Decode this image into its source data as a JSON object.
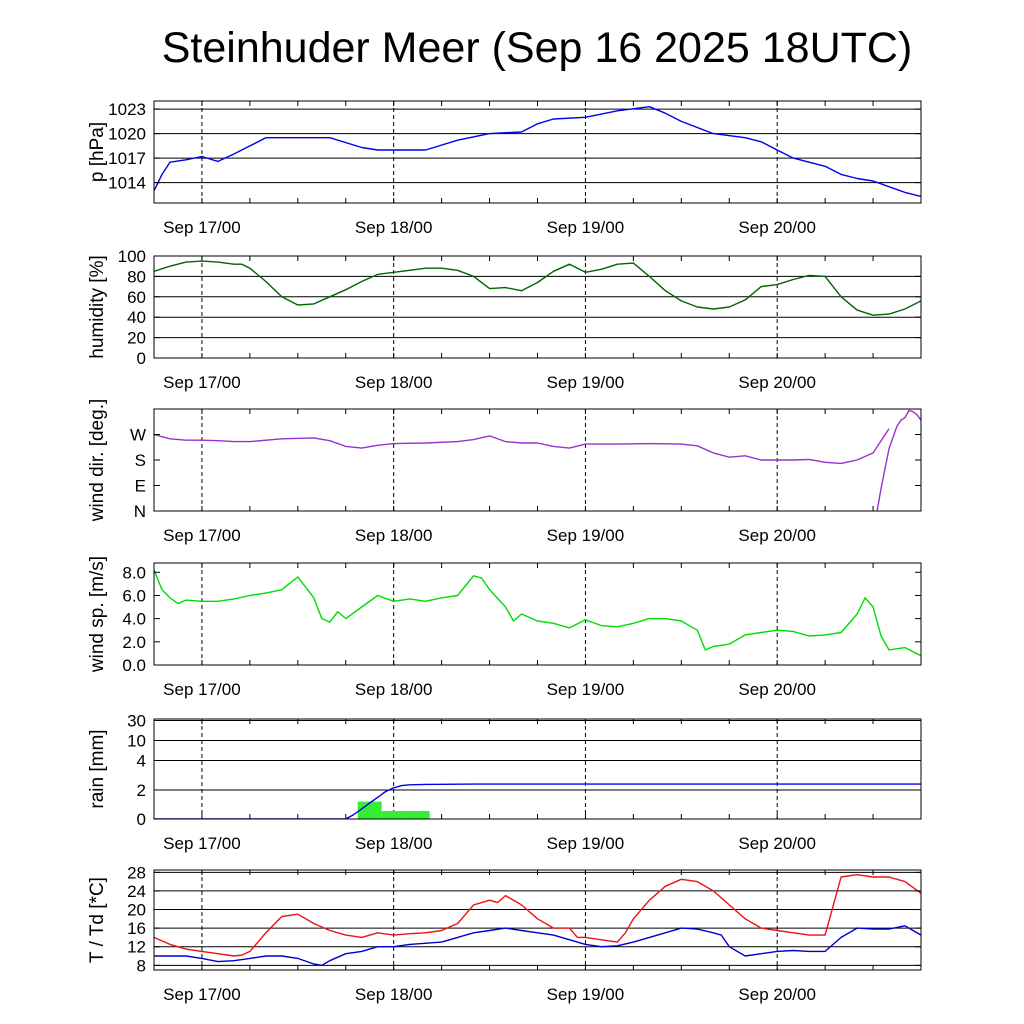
{
  "title": "Steinhuder Meer (Sep 16 2025 18UTC)",
  "x_tick_labels": [
    "Sep 17/00",
    "Sep 18/00",
    "Sep 19/00",
    "Sep 20/00"
  ],
  "colors": {
    "pressure": "#0000ee",
    "humidity": "#006400",
    "wind_dir": "#9932cc",
    "wind_speed": "#00dd00",
    "rain_bar": "#33ee33",
    "rain_line": "#0000ee",
    "temperature": "#ee1111",
    "dewpoint": "#0000cc"
  },
  "chart_data": [
    {
      "type": "line",
      "ylabel": "p [hPa]",
      "xlim": [
        0,
        96
      ],
      "x_ticks": [
        6,
        30,
        54,
        78
      ],
      "ylim": [
        1011.5,
        1024
      ],
      "y_ticks": [
        1014,
        1017,
        1020,
        1023
      ],
      "y_tick_labels": [
        "1014",
        "1017",
        "1020",
        "1023"
      ],
      "grid": true,
      "series": [
        {
          "color_key": "pressure",
          "x": [
            0,
            1,
            2,
            4,
            6,
            8,
            10,
            12,
            14,
            18,
            22,
            26,
            28,
            30,
            34,
            38,
            42,
            46,
            48,
            50,
            54,
            58,
            62,
            64,
            66,
            70,
            74,
            76,
            78,
            80,
            84,
            86,
            88,
            90,
            92,
            94,
            96
          ],
          "y": [
            1013,
            1015,
            1016.5,
            1016.8,
            1017.2,
            1016.6,
            1017.5,
            1018.5,
            1019.5,
            1019.5,
            1019.5,
            1018.3,
            1018,
            1018,
            1018,
            1019.2,
            1020,
            1020.2,
            1021.2,
            1021.8,
            1022,
            1022.8,
            1023.3,
            1022.5,
            1021.5,
            1020,
            1019.5,
            1019,
            1018,
            1017,
            1016,
            1015,
            1014.5,
            1014.2,
            1013.5,
            1012.8,
            1012.3
          ]
        }
      ]
    },
    {
      "type": "line",
      "ylabel": "humidity [%]",
      "xlim": [
        0,
        96
      ],
      "x_ticks": [
        6,
        30,
        54,
        78
      ],
      "ylim": [
        0,
        100
      ],
      "y_ticks": [
        0,
        20,
        40,
        60,
        80,
        100
      ],
      "y_tick_labels": [
        "0",
        "20",
        "40",
        "60",
        "80",
        "100"
      ],
      "grid": true,
      "series": [
        {
          "color_key": "humidity",
          "x": [
            0,
            2,
            4,
            6,
            8,
            10,
            11,
            12,
            14,
            16,
            18,
            20,
            22,
            24,
            26,
            28,
            30,
            32,
            34,
            36,
            38,
            40,
            42,
            44,
            46,
            48,
            50,
            52,
            54,
            56,
            58,
            60,
            62,
            64,
            66,
            68,
            70,
            72,
            74,
            76,
            78,
            80,
            82,
            84,
            86,
            88,
            90,
            92,
            94,
            96
          ],
          "y": [
            85,
            90,
            94,
            95,
            94,
            92,
            92,
            88,
            75,
            60,
            52,
            53,
            60,
            67,
            75,
            82,
            84,
            86,
            88,
            88,
            86,
            80,
            68,
            69,
            66,
            74,
            85,
            92,
            84,
            87,
            92,
            93,
            80,
            66,
            56,
            50,
            48,
            50,
            57,
            70,
            72,
            77,
            81,
            80,
            60,
            47,
            42,
            43,
            48,
            56
          ]
        }
      ]
    },
    {
      "type": "line",
      "ylabel": "wind dir. [deg.]",
      "xlim": [
        0,
        96
      ],
      "x_ticks": [
        6,
        30,
        54,
        78
      ],
      "ylim": [
        0,
        360
      ],
      "y_ticks": [
        0,
        90,
        180,
        270
      ],
      "y_tick_labels": [
        "N",
        "E",
        "S",
        "W"
      ],
      "grid": false,
      "series": [
        {
          "color_key": "wind_dir",
          "x": [
            0,
            2,
            4,
            6,
            8,
            10,
            12,
            16,
            20,
            22,
            24,
            26,
            28,
            30,
            34,
            38,
            40,
            42,
            44,
            46,
            48,
            50,
            52,
            54,
            58,
            62,
            66,
            68,
            70,
            72,
            74,
            76,
            78,
            80,
            82,
            84,
            86,
            88,
            90,
            92
          ],
          "y": [
            270,
            255,
            250,
            250,
            248,
            245,
            245,
            255,
            258,
            248,
            228,
            222,
            232,
            238,
            240,
            245,
            252,
            265,
            245,
            240,
            240,
            228,
            222,
            236,
            236,
            238,
            236,
            230,
            205,
            190,
            195,
            180,
            180,
            180,
            182,
            172,
            168,
            180,
            205,
            290
          ]
        },
        {
          "color_key": "wind_dir",
          "x": [
            90.5,
            91,
            92,
            93,
            93.5,
            94,
            94.5,
            95,
            95.5,
            96
          ],
          "y": [
            0,
            80,
            220,
            300,
            320,
            330,
            355,
            350,
            340,
            320
          ]
        }
      ]
    },
    {
      "type": "line",
      "ylabel": "wind sp. [m/s]",
      "xlim": [
        0,
        96
      ],
      "x_ticks": [
        6,
        30,
        54,
        78
      ],
      "ylim": [
        0,
        8.8
      ],
      "y_ticks": [
        0,
        2,
        4,
        6,
        8
      ],
      "y_tick_labels": [
        "0.0",
        "2.0",
        "4.0",
        "6.0",
        "8.0"
      ],
      "grid": false,
      "series": [
        {
          "color_key": "wind_speed",
          "x": [
            0,
            1,
            2,
            3,
            4,
            6,
            8,
            10,
            12,
            14,
            16,
            18,
            20,
            21,
            22,
            23,
            24,
            26,
            28,
            30,
            32,
            34,
            36,
            38,
            40,
            41,
            42,
            44,
            45,
            46,
            48,
            50,
            52,
            54,
            56,
            58,
            60,
            62,
            64,
            66,
            68,
            69,
            70,
            72,
            74,
            76,
            78,
            80,
            82,
            84,
            86,
            88,
            89,
            90,
            91,
            92,
            94,
            96
          ],
          "y": [
            8.2,
            6.5,
            5.8,
            5.3,
            5.6,
            5.5,
            5.5,
            5.7,
            6.0,
            6.2,
            6.5,
            7.6,
            5.8,
            4.0,
            3.7,
            4.6,
            4.0,
            5.0,
            6.0,
            5.5,
            5.7,
            5.5,
            5.8,
            6.0,
            7.7,
            7.5,
            6.5,
            5.0,
            3.8,
            4.4,
            3.8,
            3.6,
            3.2,
            3.9,
            3.4,
            3.3,
            3.6,
            4.0,
            4.0,
            3.8,
            3.0,
            1.3,
            1.6,
            1.8,
            2.6,
            2.8,
            3.0,
            2.9,
            2.5,
            2.6,
            2.8,
            4.4,
            5.8,
            5.0,
            2.5,
            1.3,
            1.5,
            0.8
          ]
        }
      ]
    },
    {
      "type": "bar+line",
      "ylabel": "rain [mm]",
      "xlim": [
        0,
        96
      ],
      "x_ticks": [
        6,
        30,
        54,
        78
      ],
      "y_scale": "nonlinear",
      "y_ticks": [
        0,
        2,
        4,
        10,
        30
      ],
      "y_tick_labels": [
        "0",
        "2",
        "4",
        "10",
        "30"
      ],
      "grid": true,
      "bars": {
        "color_key": "rain_bar",
        "x_start": [
          25.5,
          28.5,
          31.5
        ],
        "x_end": [
          28.5,
          31.5,
          34.5
        ],
        "values": [
          1.2,
          0.55,
          0.55
        ]
      },
      "series": [
        {
          "color_key": "rain_line",
          "x": [
            0,
            24,
            25,
            26,
            27,
            28,
            29,
            30,
            31,
            32,
            34,
            40,
            96
          ],
          "y": [
            0,
            0,
            0.3,
            0.7,
            1.1,
            1.5,
            1.9,
            2.15,
            2.3,
            2.35,
            2.38,
            2.4,
            2.4
          ]
        }
      ]
    },
    {
      "type": "line",
      "ylabel": "T / Td [*C]",
      "xlim": [
        0,
        96
      ],
      "x_ticks": [
        6,
        30,
        54,
        78
      ],
      "ylim": [
        7,
        28.5
      ],
      "y_ticks": [
        8,
        12,
        16,
        20,
        24,
        28
      ],
      "y_tick_labels": [
        "8",
        "12",
        "16",
        "20",
        "24",
        "28"
      ],
      "grid": true,
      "series": [
        {
          "color_key": "temperature",
          "x": [
            0,
            2,
            4,
            6,
            8,
            10,
            11,
            12,
            14,
            16,
            18,
            20,
            22,
            24,
            26,
            28,
            30,
            32,
            34,
            36,
            38,
            40,
            42,
            43,
            44,
            46,
            48,
            50,
            52,
            53,
            54,
            56,
            58,
            59,
            60,
            62,
            64,
            66,
            68,
            70,
            72,
            74,
            76,
            78,
            80,
            82,
            84,
            86,
            88,
            90,
            92,
            94,
            96
          ],
          "y": [
            14,
            12.5,
            11.5,
            11,
            10.5,
            10,
            10.2,
            11,
            15,
            18.5,
            19,
            17,
            15.5,
            14.5,
            14,
            15,
            14.5,
            14.8,
            15,
            15.5,
            17,
            21,
            22,
            21.5,
            23,
            21,
            18,
            16,
            16,
            14,
            14,
            13.5,
            13,
            15,
            18,
            22,
            25,
            26.5,
            26,
            24,
            21,
            18,
            16,
            15.5,
            15,
            14.5,
            14.5,
            27,
            27.5,
            27,
            27,
            26,
            23.5
          ]
        },
        {
          "color_key": "dewpoint",
          "x": [
            0,
            4,
            6,
            8,
            10,
            12,
            14,
            16,
            18,
            20,
            21,
            22,
            24,
            26,
            28,
            30,
            32,
            36,
            38,
            40,
            42,
            44,
            46,
            48,
            50,
            54,
            56,
            58,
            60,
            62,
            64,
            66,
            68,
            70,
            71,
            72,
            74,
            76,
            78,
            80,
            82,
            84,
            86,
            88,
            90,
            92,
            94,
            96
          ],
          "y": [
            10,
            10,
            9.5,
            8.8,
            9,
            9.5,
            10,
            10,
            9.5,
            8.3,
            8.0,
            9,
            10.5,
            11,
            12,
            12,
            12.5,
            13,
            14,
            15,
            15.5,
            16,
            15.5,
            15,
            14.5,
            12.5,
            12,
            12.2,
            13,
            14,
            15,
            16,
            15.8,
            15,
            14.5,
            12,
            10,
            10.5,
            11,
            11.2,
            11,
            11,
            14,
            16,
            15.8,
            15.8,
            16.5,
            14.5
          ]
        }
      ]
    }
  ]
}
